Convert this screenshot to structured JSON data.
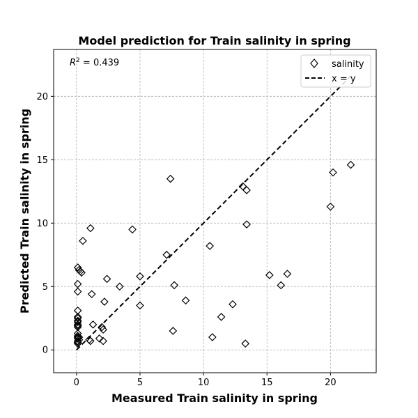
{
  "chart_data": {
    "type": "scatter",
    "title": "Model prediction for Train salinity in spring",
    "xlabel": "Measured Train salinity in spring",
    "ylabel": "Predicted Train salinity in spring",
    "xlim": [
      -1.8,
      23.6
    ],
    "ylim": [
      -1.8,
      23.7
    ],
    "xticks": [
      0,
      5,
      10,
      15,
      20
    ],
    "yticks": [
      0,
      5,
      10,
      15,
      20
    ],
    "grid": true,
    "legend_position": "top-right",
    "annotation": {
      "prefix": "R",
      "superscript": "2",
      "suffix": " = 0.439"
    },
    "series": [
      {
        "name": "salinity",
        "marker": "diamond",
        "color": "#000000",
        "x": [
          0.1,
          0.1,
          0.1,
          0.1,
          0.1,
          0.1,
          0.1,
          0.1,
          0.1,
          0.1,
          0.1,
          0.1,
          0.1,
          0.1,
          0.1,
          0.1,
          0.1,
          0.1,
          0.2,
          0.2,
          0.2,
          0.3,
          0.4,
          0.5,
          1.1,
          1.2,
          1.3,
          1.8,
          2.0,
          2.1,
          2.1,
          2.2,
          2.4,
          1.0,
          1.1,
          3.4,
          4.4,
          5.0,
          5.0,
          7.1,
          7.4,
          7.6,
          7.7,
          8.6,
          10.5,
          10.7,
          11.4,
          12.3,
          13.1,
          13.3,
          13.4,
          13.4,
          15.2,
          16.1,
          16.6,
          20.0,
          20.2,
          21.6
        ],
        "y": [
          0.5,
          0.6,
          0.7,
          0.9,
          1.0,
          1.1,
          1.3,
          1.8,
          1.9,
          2.0,
          2.2,
          2.3,
          2.5,
          2.6,
          3.1,
          4.6,
          6.5,
          5.2,
          0.8,
          1.0,
          6.3,
          6.2,
          6.1,
          8.6,
          9.6,
          4.4,
          2.0,
          0.9,
          1.8,
          1.6,
          0.7,
          3.8,
          5.6,
          0.8,
          0.7,
          5.0,
          9.5,
          5.8,
          3.5,
          7.5,
          13.5,
          1.5,
          5.1,
          3.9,
          8.2,
          1.0,
          2.6,
          3.6,
          12.9,
          0.5,
          12.6,
          9.9,
          5.9,
          5.1,
          6.0,
          11.3,
          14.0,
          14.6
        ]
      },
      {
        "name": "x = y",
        "style": "dashed",
        "color": "#000000",
        "x": [
          0.0,
          21.6
        ],
        "y": [
          0.0,
          21.6
        ]
      }
    ]
  }
}
